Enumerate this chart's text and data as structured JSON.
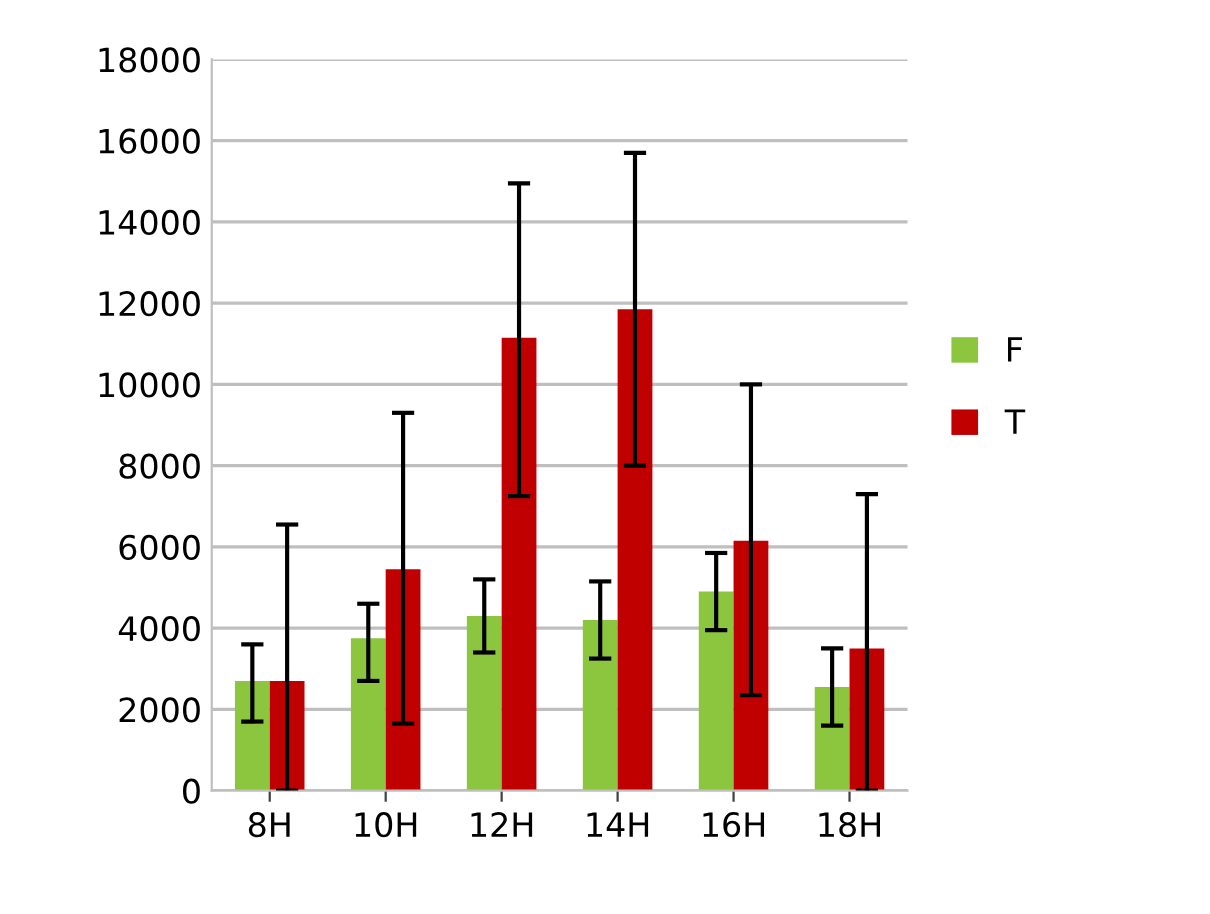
{
  "chart_data": {
    "type": "bar",
    "categories": [
      "8H",
      "10H",
      "12H",
      "14H",
      "16H",
      "18H"
    ],
    "series": [
      {
        "name": "F",
        "color": "#8cc63f",
        "values": [
          2700,
          3750,
          4300,
          4200,
          4900,
          2550
        ],
        "errors": [
          [
            1700,
            3600
          ],
          [
            2700,
            4600
          ],
          [
            3400,
            5200
          ],
          [
            3250,
            5150
          ],
          [
            3950,
            5850
          ],
          [
            1600,
            3500
          ]
        ]
      },
      {
        "name": "T",
        "color": "#c00000",
        "values": [
          2700,
          5450,
          11150,
          11850,
          6150,
          3500
        ],
        "errors": [
          [
            0,
            6550
          ],
          [
            1650,
            9300
          ],
          [
            7250,
            14950
          ],
          [
            8000,
            15700
          ],
          [
            2350,
            10000
          ],
          [
            0,
            7300
          ]
        ]
      }
    ],
    "ylim": [
      0,
      18000
    ],
    "yticks": [
      0,
      2000,
      4000,
      6000,
      8000,
      10000,
      12000,
      14000,
      16000,
      18000
    ],
    "grid": "y",
    "legend": "right"
  }
}
